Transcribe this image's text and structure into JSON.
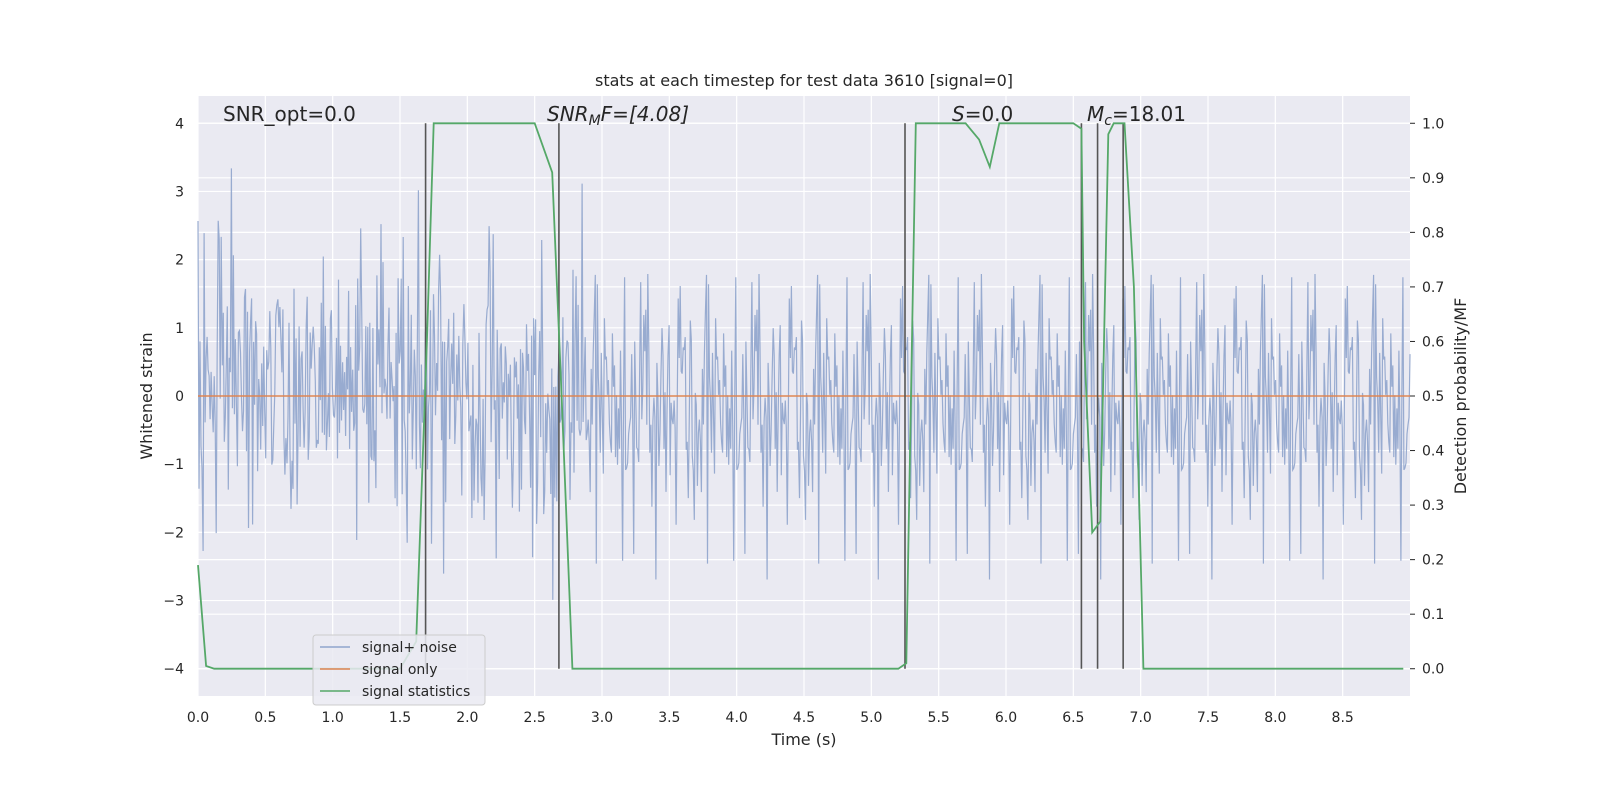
{
  "chart_data": {
    "type": "line",
    "title": "stats at each timestep for test data 3610 [signal=0]",
    "xlabel": "Time (s)",
    "ylabel_left": "Whitened strain",
    "ylabel_right": "Detection probability/MF",
    "xlim": [
      0,
      9.0
    ],
    "ylim_left": [
      -4.4,
      4.4
    ],
    "ylim_right": [
      -0.05,
      1.05
    ],
    "x_ticks": [
      0.0,
      0.5,
      1.0,
      1.5,
      2.0,
      2.5,
      3.0,
      3.5,
      4.0,
      4.5,
      5.0,
      5.5,
      6.0,
      6.5,
      7.0,
      7.5,
      8.0,
      8.5
    ],
    "x_tick_labels": [
      "0.0",
      "0.5",
      "1.0",
      "1.5",
      "2.0",
      "2.5",
      "3.0",
      "3.5",
      "4.0",
      "4.5",
      "5.0",
      "5.5",
      "6.0",
      "6.5",
      "7.0",
      "7.5",
      "8.0",
      "8.5"
    ],
    "y_left_ticks": [
      -4,
      -3,
      -2,
      -1,
      0,
      1,
      2,
      3,
      4
    ],
    "y_left_tick_labels": [
      "−4",
      "−3",
      "−2",
      "−1",
      "0",
      "1",
      "2",
      "3",
      "4"
    ],
    "y_right_ticks": [
      0.0,
      0.1,
      0.2,
      0.3,
      0.4,
      0.5,
      0.6,
      0.7,
      0.8,
      0.9,
      1.0
    ],
    "y_right_tick_labels": [
      "0.0",
      "0.1",
      "0.2",
      "0.3",
      "0.4",
      "0.5",
      "0.6",
      "0.7",
      "0.8",
      "0.9",
      "1.0"
    ],
    "grid": true,
    "legend_position": "lower-left",
    "annotations": {
      "snr_opt": "SNR_opt=0.0",
      "snr_mf_main": "SNR",
      "snr_mf_sub": "M",
      "snr_mf_rest": "F=[4.08]",
      "s_main": "S",
      "s_rest": "=0.0",
      "mc_main": "M",
      "mc_sub": "c",
      "mc_rest": "=18.01"
    },
    "series": [
      {
        "name": "signal+ noise",
        "color": "#8fa4cc",
        "axis": "left",
        "noise_sigma": 0.85,
        "noise_seed": 3610,
        "noise_samples": 1200
      },
      {
        "name": "signal only",
        "color": "#dd8452",
        "axis": "left",
        "x": [
          0.0,
          9.0
        ],
        "y": [
          0.0,
          0.0
        ]
      },
      {
        "name": "signal statistics",
        "color": "#55a868",
        "axis": "right",
        "x": [
          0.0,
          0.06,
          0.12,
          0.5,
          1.0,
          1.5,
          1.62,
          1.7,
          1.75,
          2.0,
          2.5,
          2.63,
          2.7,
          2.78,
          3.0,
          4.0,
          5.0,
          5.2,
          5.26,
          5.33,
          5.5,
          5.7,
          5.8,
          5.88,
          5.95,
          6.2,
          6.5,
          6.56,
          6.58,
          6.64,
          6.7,
          6.76,
          6.8,
          6.88,
          6.95,
          7.02,
          7.1,
          8.0,
          8.95
        ],
        "y": [
          0.19,
          0.005,
          0.0,
          0.0,
          0.0,
          0.0,
          0.05,
          0.6,
          1.0,
          1.0,
          1.0,
          0.91,
          0.5,
          0.0,
          0.0,
          0.0,
          0.0,
          0.0,
          0.01,
          1.0,
          1.0,
          1.0,
          0.97,
          0.92,
          1.0,
          1.0,
          1.0,
          0.99,
          0.6,
          0.25,
          0.27,
          0.98,
          1.0,
          1.0,
          0.7,
          0.0,
          0.0,
          0.0,
          0.0
        ]
      }
    ],
    "vertical_markers": {
      "color": "#555555",
      "x": [
        1.69,
        2.68,
        5.25,
        6.56,
        6.68,
        6.87
      ],
      "y_top": 1.0,
      "y_bottom": 0.0
    }
  }
}
